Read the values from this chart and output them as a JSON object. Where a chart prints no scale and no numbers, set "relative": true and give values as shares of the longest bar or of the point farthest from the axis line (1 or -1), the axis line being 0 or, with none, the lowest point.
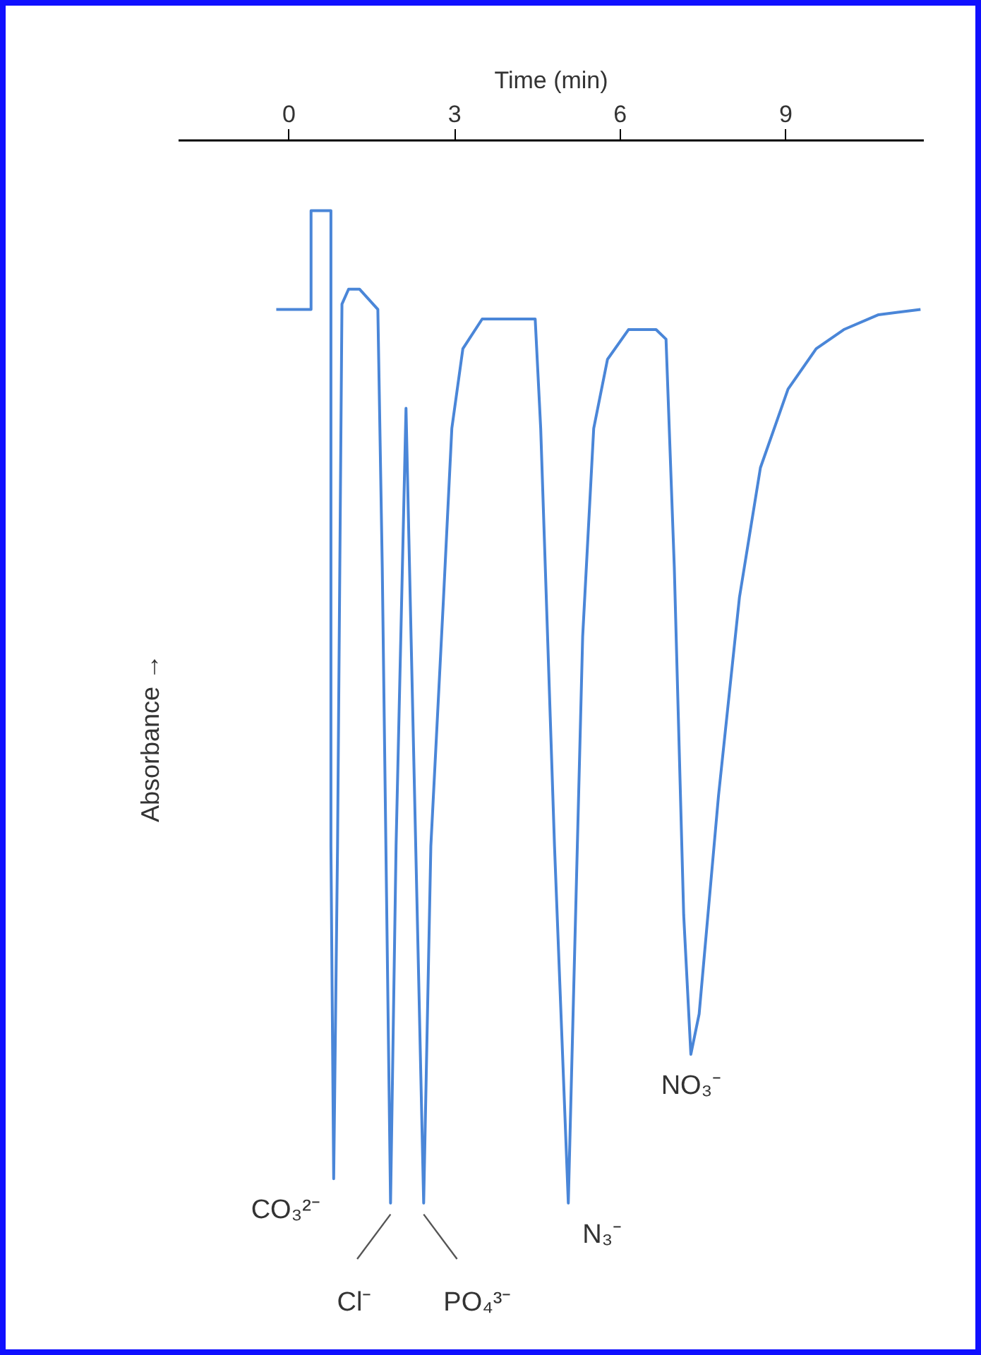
{
  "chart_data": {
    "type": "line",
    "xlabel": "Time (min)",
    "ylabel": "Absorbance →",
    "relative": true,
    "xlim": [
      -2.0,
      11.5
    ],
    "xticks": [
      0,
      3,
      6,
      9
    ],
    "grid": false,
    "tick_labels": "x",
    "series": [
      {
        "color": "#4a86d8",
        "x": [
          -0.23,
          0.4,
          0.4,
          0.76,
          0.76,
          0.81,
          0.88,
          0.96,
          1.08,
          1.28,
          1.61,
          1.69,
          1.84,
          1.94,
          2.12,
          2.24,
          2.44,
          2.57,
          2.8,
          2.95,
          3.15,
          3.5,
          4.01,
          4.46,
          4.56,
          4.81,
          5.06,
          5.16,
          5.32,
          5.52,
          5.77,
          6.15,
          6.65,
          6.83,
          6.98,
          7.15,
          7.28,
          7.43,
          7.78,
          8.16,
          8.54,
          9.04,
          9.55,
          10.05,
          10.68,
          11.44
        ],
        "values": [
          -0.159,
          -0.159,
          -0.066,
          -0.066,
          -0.664,
          -0.977,
          -0.664,
          -0.154,
          -0.14,
          -0.14,
          -0.159,
          -0.402,
          -1.0,
          -0.664,
          -0.252,
          -0.533,
          -1.0,
          -0.664,
          -0.43,
          -0.271,
          -0.196,
          -0.168,
          -0.168,
          -0.168,
          -0.271,
          -0.664,
          -1.0,
          -0.794,
          -0.467,
          -0.271,
          -0.206,
          -0.178,
          -0.178,
          -0.187,
          -0.402,
          -0.729,
          -0.86,
          -0.822,
          -0.617,
          -0.43,
          -0.308,
          -0.234,
          -0.196,
          -0.178,
          -0.164,
          -0.159
        ]
      }
    ],
    "annotations": [
      {
        "text": "CO₃²⁻",
        "x": 0.81,
        "y": -0.977
      },
      {
        "text": "Cl⁻",
        "x": 1.84,
        "y": -1.0
      },
      {
        "text": "PO₄³⁻",
        "x": 2.44,
        "y": -1.0
      },
      {
        "text": "N₃⁻",
        "x": 5.06,
        "y": -1.0
      },
      {
        "text": "NO₃⁻",
        "x": 7.28,
        "y": -0.86
      }
    ]
  }
}
